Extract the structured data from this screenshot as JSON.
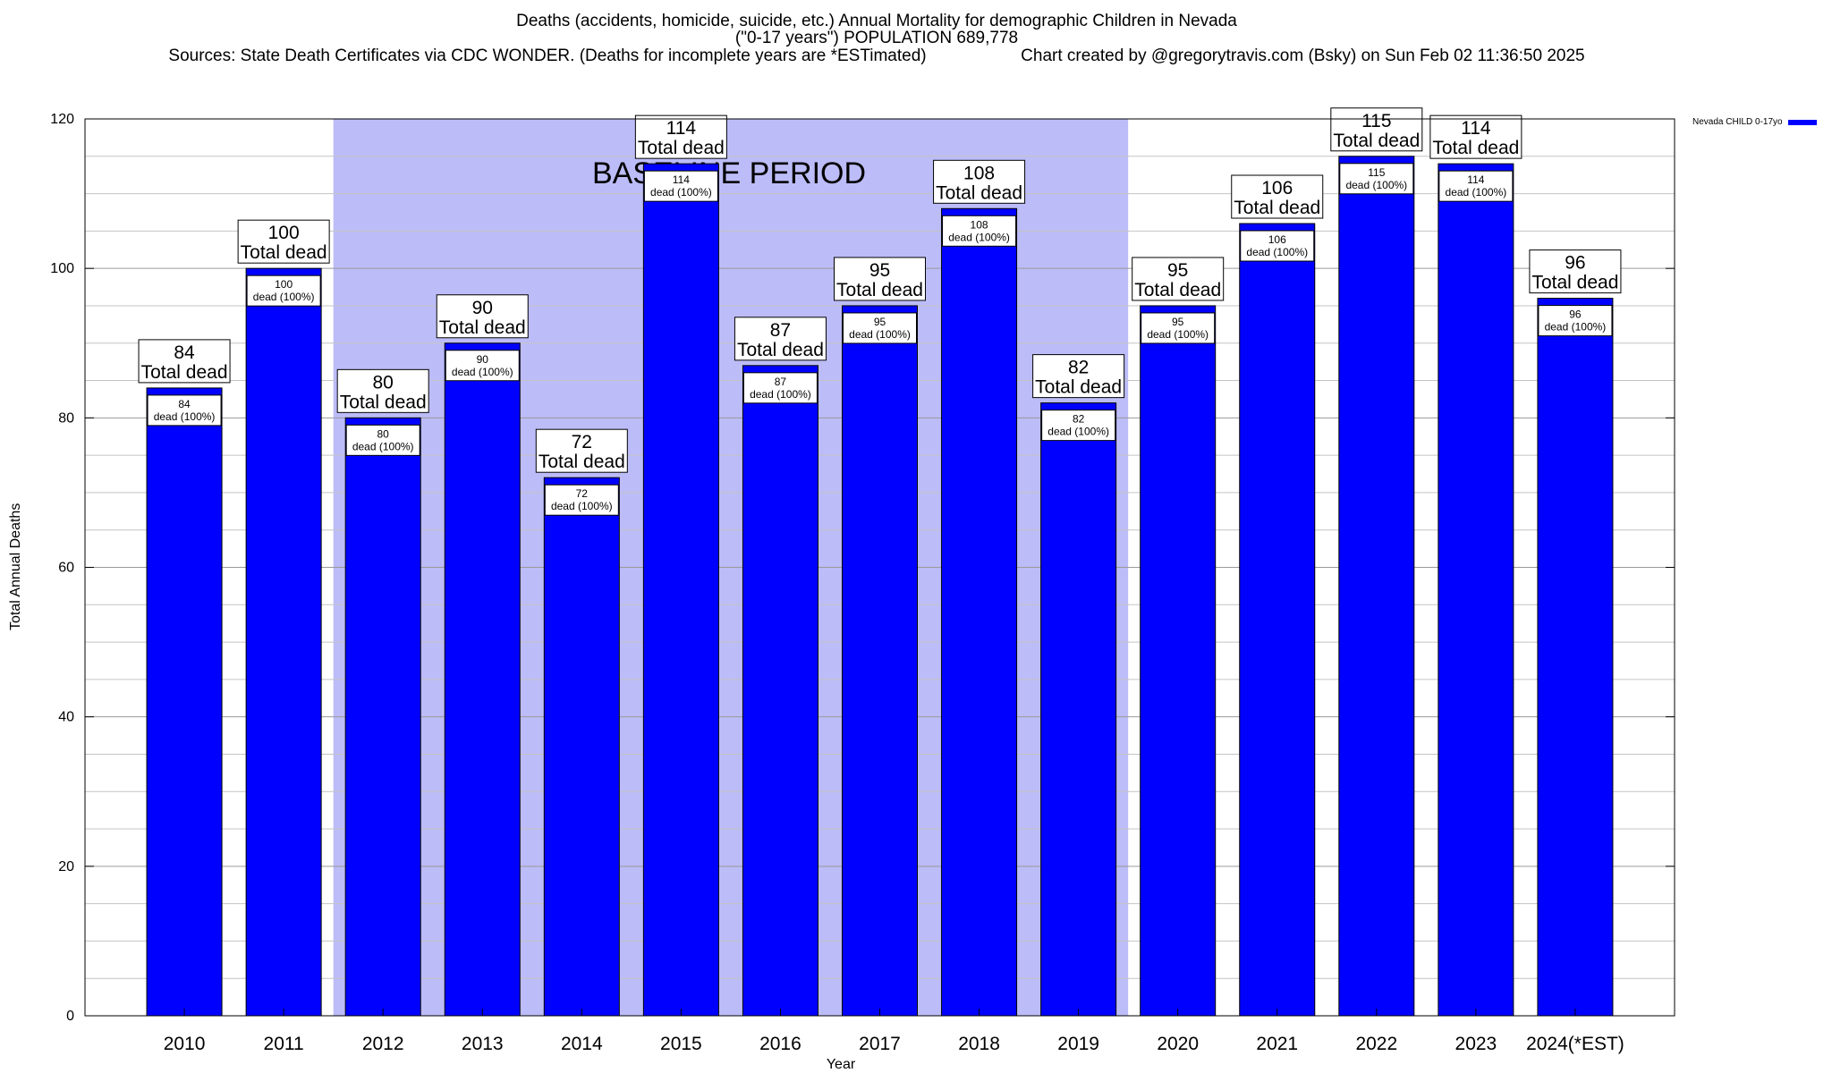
{
  "chart_data": {
    "type": "bar",
    "title": "Deaths (accidents, homicide, suicide, etc.) Annual Mortality for demographic Children in Nevada",
    "subtitle": "(\"0-17 years\") POPULATION 689,778",
    "sources_line": "Sources: State Death Certificates via CDC WONDER. (Deaths for incomplete years are *ESTimated)                    Chart created by @gregorytravis.com (Bsky) on Sun Feb 02 11:36:50 2025",
    "xlabel": "Year",
    "ylabel": "Total Annual Deaths",
    "ylim": [
      0,
      120
    ],
    "yticks": [
      0,
      20,
      40,
      60,
      80,
      100,
      120
    ],
    "grid": true,
    "legend_position": "top-right",
    "categories": [
      "2010",
      "2011",
      "2012",
      "2013",
      "2014",
      "2015",
      "2016",
      "2017",
      "2018",
      "2019",
      "2020",
      "2021",
      "2022",
      "2023",
      "2024(*EST)"
    ],
    "series": [
      {
        "name": "Nevada CHILD 0-17yo",
        "color": "#0000ff",
        "values": [
          84,
          100,
          80,
          90,
          72,
          114,
          87,
          95,
          108,
          82,
          95,
          106,
          115,
          114,
          96
        ]
      }
    ],
    "top_label_suffix": "Total dead",
    "inner_label_suffix": "dead (100%)",
    "baseline_region": {
      "label": "BASELINE PERIOD",
      "from_category": "2012",
      "to_category": "2019",
      "color": "#bcbcf8"
    }
  }
}
